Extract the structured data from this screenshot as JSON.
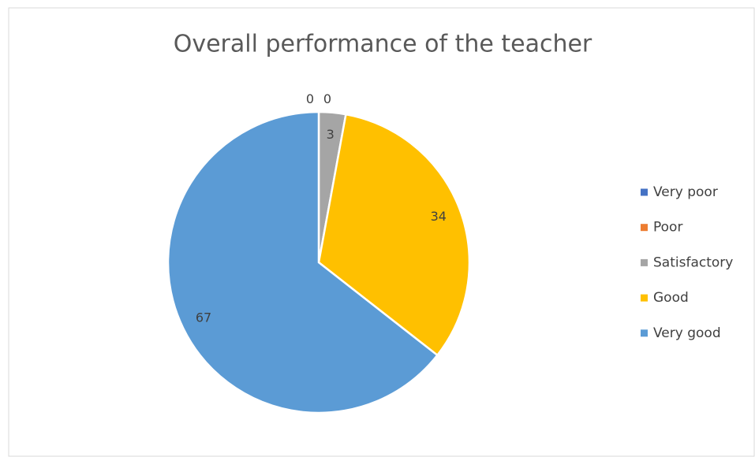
{
  "chart_data": {
    "type": "pie",
    "title": "Overall performance of the teacher",
    "categories": [
      "Very poor",
      "Poor",
      "Satisfactory",
      "Good",
      "Very good"
    ],
    "values": [
      0,
      0,
      3,
      34,
      67
    ],
    "colors": [
      "#4472c4",
      "#ed7d31",
      "#a5a5a5",
      "#ffc000",
      "#5b9bd5"
    ],
    "legend": "right"
  }
}
